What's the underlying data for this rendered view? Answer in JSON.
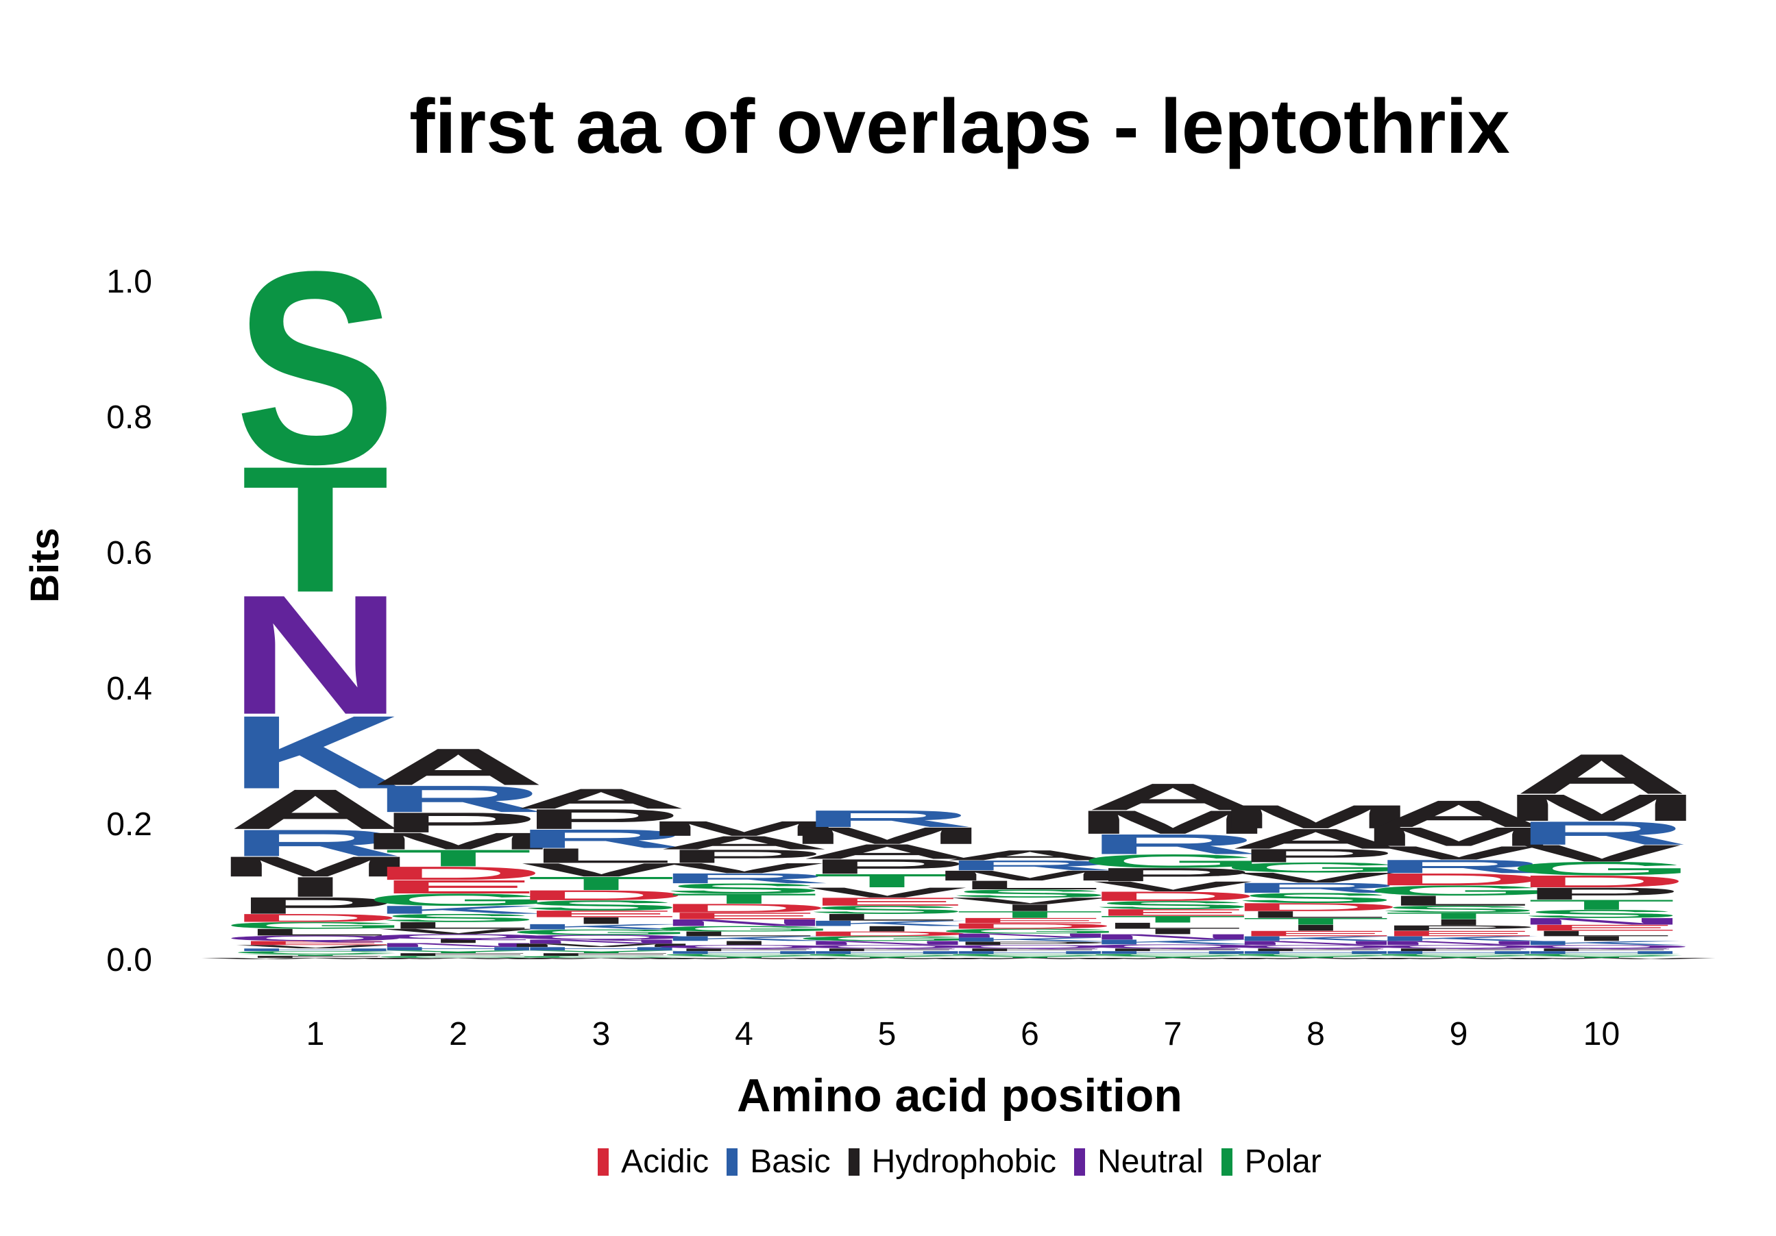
{
  "chart_data": {
    "type": "sequence_logo",
    "title": "first aa of overlaps - leptothrix",
    "xlabel": "Amino acid position",
    "ylabel": "Bits",
    "ylim": [
      0,
      1.0
    ],
    "y_ticks": [
      "0.0",
      "0.2",
      "0.4",
      "0.6",
      "0.8",
      "1.0"
    ],
    "positions": [
      "1",
      "2",
      "3",
      "4",
      "5",
      "6",
      "7",
      "8",
      "9",
      "10"
    ],
    "groups": {
      "Acidic": "#d62839",
      "Basic": "#2b5ea7",
      "Hydrophobic": "#231f20",
      "Neutral": "#62239b",
      "Polar": "#0b9444"
    },
    "residue_groups": {
      "D": "Acidic",
      "E": "Acidic",
      "K": "Basic",
      "R": "Basic",
      "H": "Basic",
      "A": "Hydrophobic",
      "V": "Hydrophobic",
      "L": "Hydrophobic",
      "I": "Hydrophobic",
      "P": "Hydrophobic",
      "W": "Hydrophobic",
      "F": "Hydrophobic",
      "M": "Hydrophobic",
      "N": "Neutral",
      "Q": "Neutral",
      "S": "Polar",
      "T": "Polar",
      "G": "Polar",
      "Y": "Polar",
      "C": "Polar"
    },
    "stacks": [
      [
        [
          "S",
          0.29
        ],
        [
          "T",
          0.19
        ],
        [
          "N",
          0.18
        ],
        [
          "K",
          0.11
        ],
        [
          "A",
          0.06
        ],
        [
          "I",
          0.03
        ],
        [
          "R",
          0.04
        ],
        [
          "M",
          0.03
        ],
        [
          "P",
          0.025
        ],
        [
          "D",
          0.012
        ],
        [
          "L",
          0.01
        ],
        [
          "G",
          0.01
        ],
        [
          "Q",
          0.008
        ],
        [
          "E",
          0.006
        ],
        [
          "V",
          0.005
        ],
        [
          "C",
          0.004
        ],
        [
          "H",
          0.004
        ],
        [
          "F",
          0.003
        ],
        [
          "Y",
          0.003
        ],
        [
          "W",
          0.002
        ]
      ],
      [
        [
          "A",
          0.055
        ],
        [
          "R",
          0.04
        ],
        [
          "T",
          0.025
        ],
        [
          "P",
          0.03
        ],
        [
          "M",
          0.025
        ],
        [
          "E",
          0.02
        ],
        [
          "D",
          0.02
        ],
        [
          "S",
          0.012
        ],
        [
          "G",
          0.018
        ],
        [
          "K",
          0.012
        ],
        [
          "L",
          0.01
        ],
        [
          "V",
          0.008
        ],
        [
          "Q",
          0.007
        ],
        [
          "N",
          0.006
        ],
        [
          "I",
          0.006
        ],
        [
          "H",
          0.005
        ],
        [
          "F",
          0.004
        ],
        [
          "Y",
          0.004
        ],
        [
          "C",
          0.003
        ],
        [
          "W",
          0.002
        ]
      ],
      [
        [
          "P",
          0.03
        ],
        [
          "A",
          0.03
        ],
        [
          "R",
          0.028
        ],
        [
          "T",
          0.02
        ],
        [
          "L",
          0.022
        ],
        [
          "V",
          0.02
        ],
        [
          "S",
          0.015
        ],
        [
          "D",
          0.015
        ],
        [
          "I",
          0.01
        ],
        [
          "E",
          0.01
        ],
        [
          "G",
          0.008
        ],
        [
          "K",
          0.008
        ],
        [
          "Q",
          0.007
        ],
        [
          "N",
          0.006
        ],
        [
          "H",
          0.005
        ],
        [
          "M",
          0.005
        ],
        [
          "F",
          0.004
        ],
        [
          "Y",
          0.004
        ],
        [
          "C",
          0.003
        ],
        [
          "W",
          0.002
        ]
      ],
      [
        [
          "P",
          0.02
        ],
        [
          "A",
          0.02
        ],
        [
          "M",
          0.022
        ],
        [
          "T",
          0.015
        ],
        [
          "S",
          0.015
        ],
        [
          "R",
          0.015
        ],
        [
          "V",
          0.015
        ],
        [
          "D",
          0.013
        ],
        [
          "N",
          0.01
        ],
        [
          "E",
          0.01
        ],
        [
          "G",
          0.008
        ],
        [
          "K",
          0.007
        ],
        [
          "L",
          0.007
        ],
        [
          "I",
          0.006
        ],
        [
          "Q",
          0.005
        ],
        [
          "H",
          0.004
        ],
        [
          "F",
          0.004
        ],
        [
          "Y",
          0.003
        ],
        [
          "C",
          0.003
        ],
        [
          "W",
          0.002
        ]
      ],
      [
        [
          "P",
          0.022
        ],
        [
          "M",
          0.025
        ],
        [
          "A",
          0.022
        ],
        [
          "R",
          0.025
        ],
        [
          "T",
          0.02
        ],
        [
          "S",
          0.012
        ],
        [
          "E",
          0.012
        ],
        [
          "V",
          0.015
        ],
        [
          "L",
          0.01
        ],
        [
          "I",
          0.008
        ],
        [
          "K",
          0.008
        ],
        [
          "G",
          0.007
        ],
        [
          "D",
          0.007
        ],
        [
          "N",
          0.006
        ],
        [
          "Q",
          0.005
        ],
        [
          "H",
          0.004
        ],
        [
          "F",
          0.004
        ],
        [
          "Y",
          0.003
        ],
        [
          "C",
          0.003
        ],
        [
          "W",
          0.002
        ]
      ],
      [
        [
          "M",
          0.015
        ],
        [
          "R",
          0.015
        ],
        [
          "L",
          0.013
        ],
        [
          "A",
          0.015
        ],
        [
          "T",
          0.01
        ],
        [
          "S",
          0.012
        ],
        [
          "I",
          0.01
        ],
        [
          "V",
          0.01
        ],
        [
          "D",
          0.008
        ],
        [
          "E",
          0.008
        ],
        [
          "G",
          0.007
        ],
        [
          "K",
          0.006
        ],
        [
          "N",
          0.006
        ],
        [
          "Q",
          0.005
        ],
        [
          "P",
          0.005
        ],
        [
          "H",
          0.004
        ],
        [
          "F",
          0.004
        ],
        [
          "Y",
          0.003
        ],
        [
          "C",
          0.003
        ],
        [
          "W",
          0.002
        ]
      ],
      [
        [
          "A",
          0.04
        ],
        [
          "M",
          0.035
        ],
        [
          "R",
          0.03
        ],
        [
          "P",
          0.02
        ],
        [
          "G",
          0.02
        ],
        [
          "V",
          0.015
        ],
        [
          "S",
          0.012
        ],
        [
          "D",
          0.014
        ],
        [
          "T",
          0.01
        ],
        [
          "E",
          0.01
        ],
        [
          "L",
          0.009
        ],
        [
          "N",
          0.008
        ],
        [
          "I",
          0.008
        ],
        [
          "K",
          0.007
        ],
        [
          "Q",
          0.006
        ],
        [
          "H",
          0.004
        ],
        [
          "F",
          0.004
        ],
        [
          "Y",
          0.003
        ],
        [
          "C",
          0.003
        ],
        [
          "W",
          0.002
        ]
      ],
      [
        [
          "A",
          0.03
        ],
        [
          "M",
          0.035
        ],
        [
          "P",
          0.02
        ],
        [
          "S",
          0.015
        ],
        [
          "R",
          0.015
        ],
        [
          "V",
          0.015
        ],
        [
          "G",
          0.015
        ],
        [
          "D",
          0.012
        ],
        [
          "T",
          0.01
        ],
        [
          "L",
          0.01
        ],
        [
          "I",
          0.009
        ],
        [
          "E",
          0.008
        ],
        [
          "K",
          0.007
        ],
        [
          "N",
          0.006
        ],
        [
          "Q",
          0.005
        ],
        [
          "H",
          0.004
        ],
        [
          "F",
          0.004
        ],
        [
          "Y",
          0.003
        ],
        [
          "C",
          0.003
        ],
        [
          "W",
          0.002
        ]
      ],
      [
        [
          "A",
          0.04
        ],
        [
          "M",
          0.028
        ],
        [
          "R",
          0.02
        ],
        [
          "V",
          0.02
        ],
        [
          "D",
          0.018
        ],
        [
          "L",
          0.015
        ],
        [
          "G",
          0.015
        ],
        [
          "T",
          0.01
        ],
        [
          "S",
          0.01
        ],
        [
          "I",
          0.009
        ],
        [
          "E",
          0.008
        ],
        [
          "P",
          0.008
        ],
        [
          "K",
          0.007
        ],
        [
          "N",
          0.006
        ],
        [
          "Q",
          0.005
        ],
        [
          "H",
          0.004
        ],
        [
          "F",
          0.004
        ],
        [
          "Y",
          0.003
        ],
        [
          "C",
          0.003
        ],
        [
          "W",
          0.002
        ]
      ],
      [
        [
          "A",
          0.06
        ],
        [
          "M",
          0.04
        ],
        [
          "R",
          0.035
        ],
        [
          "V",
          0.025
        ],
        [
          "G",
          0.02
        ],
        [
          "P",
          0.018
        ],
        [
          "D",
          0.018
        ],
        [
          "S",
          0.012
        ],
        [
          "T",
          0.015
        ],
        [
          "N",
          0.01
        ],
        [
          "E",
          0.009
        ],
        [
          "L",
          0.008
        ],
        [
          "I",
          0.007
        ],
        [
          "K",
          0.006
        ],
        [
          "Q",
          0.005
        ],
        [
          "H",
          0.004
        ],
        [
          "F",
          0.004
        ],
        [
          "Y",
          0.003
        ],
        [
          "C",
          0.003
        ],
        [
          "W",
          0.002
        ]
      ]
    ]
  },
  "legend": {
    "items": [
      {
        "label": "Acidic",
        "color": "#d62839"
      },
      {
        "label": "Basic",
        "color": "#2b5ea7"
      },
      {
        "label": "Hydrophobic",
        "color": "#231f20"
      },
      {
        "label": "Neutral",
        "color": "#62239b"
      },
      {
        "label": "Polar",
        "color": "#0b9444"
      }
    ]
  }
}
